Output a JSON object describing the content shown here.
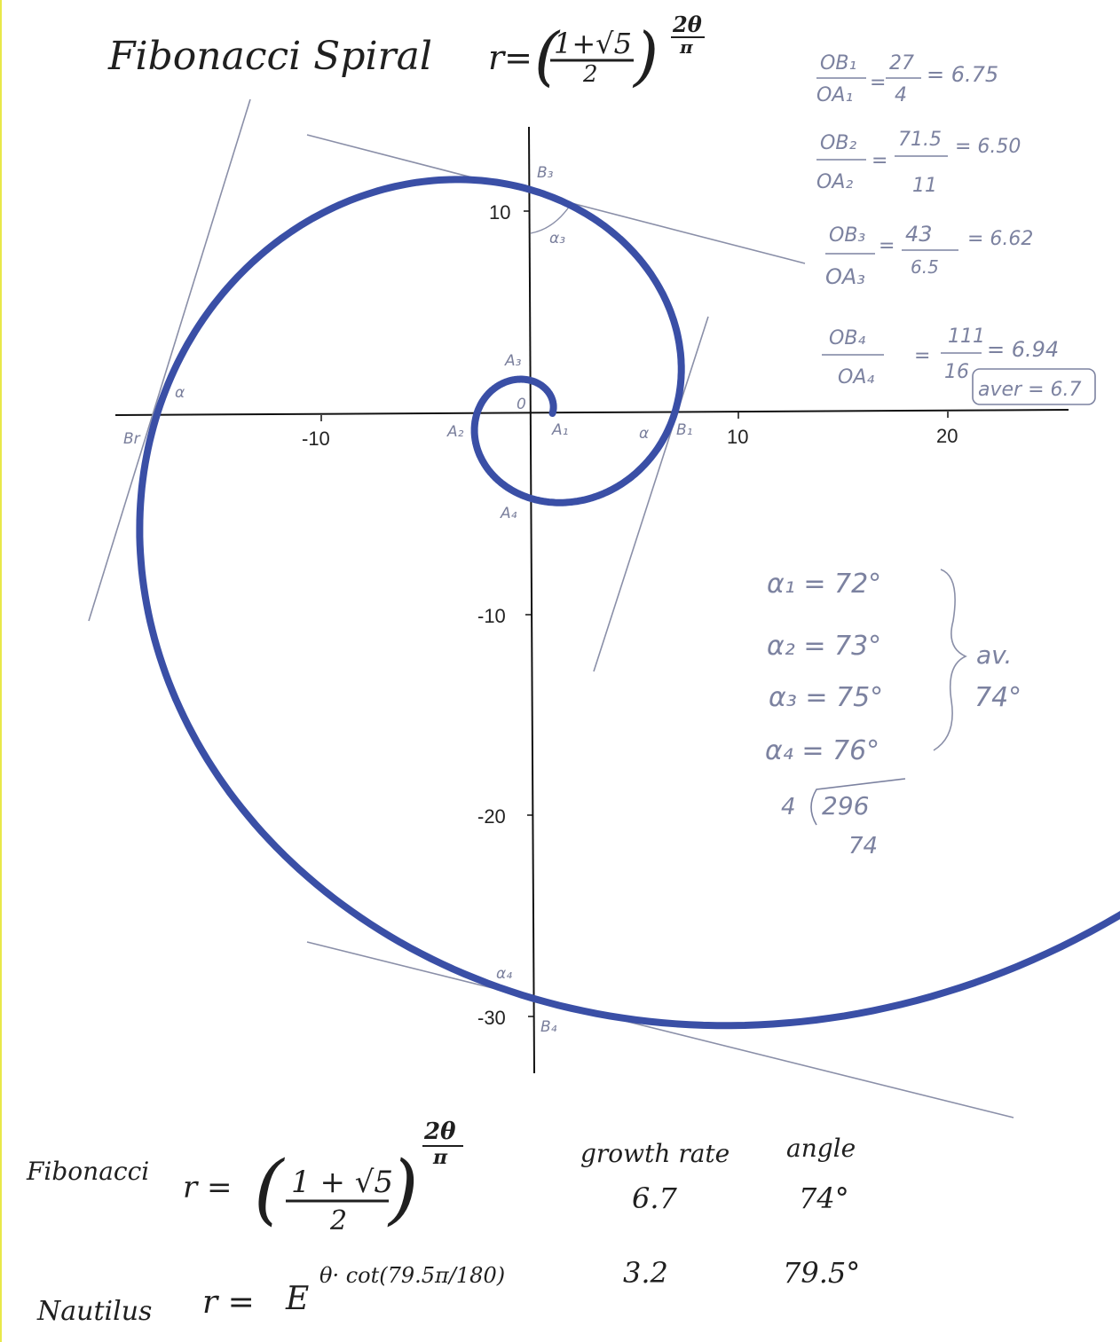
{
  "title": {
    "name": "Fibonacci Spiral",
    "formula": "r=(1+√5 / 2)^(2θ/π)",
    "lhs": "r=",
    "base_num": "1+√5",
    "base_den": "2",
    "exp_num": "2θ",
    "exp_den": "π"
  },
  "axes": {
    "x_ticks": [
      "-10",
      "10",
      "20"
    ],
    "y_ticks": [
      "10",
      "-10",
      "-20",
      "-30"
    ],
    "origin": "0"
  },
  "points": {
    "A1": "A₁",
    "A2": "A₂",
    "A3": "A₃",
    "A4": "A₄",
    "B1": "B₁",
    "B3": "B₃",
    "B4": "B₄",
    "B2": "Br",
    "alpha1": "α",
    "alpha2": "α",
    "alpha3": "α₃",
    "alpha4": "α₄"
  },
  "ratios": [
    {
      "lhs_num": "OB₁",
      "lhs_den": "OA₁",
      "rhs_num": "27",
      "rhs_den": "4",
      "result": "= 6.75"
    },
    {
      "lhs_num": "OB₂",
      "lhs_den": "OA₂",
      "rhs_num": "71.5",
      "rhs_den": "11",
      "result": "= 6.50"
    },
    {
      "lhs_num": "OB₃",
      "lhs_den": "OA₃",
      "rhs_num": "43",
      "rhs_den": "6.5",
      "result": "= 6.62"
    },
    {
      "lhs_num": "OB₄",
      "lhs_den": "OA₄",
      "rhs_num": "111",
      "rhs_den": "16",
      "result": "= 6.94"
    }
  ],
  "ratio_average": "aver = 6.7",
  "angles": [
    {
      "label": "α₁ = 72°"
    },
    {
      "label": "α₂ = 73°"
    },
    {
      "label": "α₃ = 75°"
    },
    {
      "label": "α₄ = 76°"
    }
  ],
  "angle_average_label": "av.",
  "angle_average_value": "74°",
  "division": {
    "divisor": "4",
    "dividend": "296",
    "quotient": "74"
  },
  "bottom": {
    "col_growth": "growth rate",
    "col_angle": "angle",
    "fibonacci": {
      "name": "Fibonacci",
      "lhs": "r =",
      "base_num": "1 + √5",
      "base_den": "2",
      "exp_num": "2θ",
      "exp_den": "π",
      "growth": "6.7",
      "angle": "74°"
    },
    "nautilus": {
      "name": "Nautilus",
      "lhs": "r =",
      "base": "E",
      "exponent": "θ· cot(79.5π/180)",
      "growth": "3.2",
      "angle": "79.5°"
    }
  },
  "colors": {
    "spiral": "#3a4fa6",
    "ink": "#1f1f1f",
    "pencil": "#7c82a0",
    "border": "#e9e94a"
  }
}
